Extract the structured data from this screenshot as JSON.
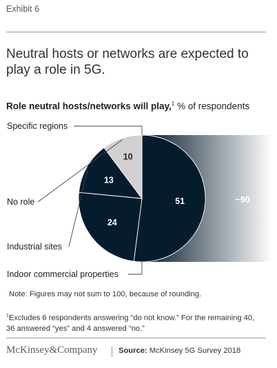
{
  "exhibit": "Exhibit 6",
  "headline": "Neutral hosts or networks are expected to play a role in 5G.",
  "subtitle": {
    "bold": "Role neutral hosts/networks will play,",
    "sup": "1",
    "rest": " % of respondents"
  },
  "note": "Note: Figures may not sum to 100, because of rounding.",
  "footnote": {
    "sup": "1",
    "text": "Excludes 6 respondents answering “do not know.” For the remaining 40, 36 answered “yes” and 4 answered “no.”"
  },
  "logo": "McKinsey&Company",
  "source": {
    "label": "Source:",
    "text": "McKinsey 5G Survey 2018"
  },
  "colors": {
    "dark_navy": "#051c2c",
    "light_gray": "#d0d0d0",
    "gradient_end": "#ffffff"
  },
  "chart_data": {
    "type": "pie",
    "slices": [
      {
        "label": "Specific regions",
        "value": 51,
        "color": "#051c2c"
      },
      {
        "label": "Indoor commercial properties",
        "value": 24,
        "color": "#051c2c"
      },
      {
        "label": "Industrial sites",
        "value": 13,
        "color": "#051c2c"
      },
      {
        "label": "No role",
        "value": 10,
        "color": "#d0d0d0"
      }
    ],
    "bracket": {
      "label": "~90",
      "covers": [
        "Specific regions",
        "Indoor commercial properties",
        "Industrial sites"
      ]
    }
  }
}
